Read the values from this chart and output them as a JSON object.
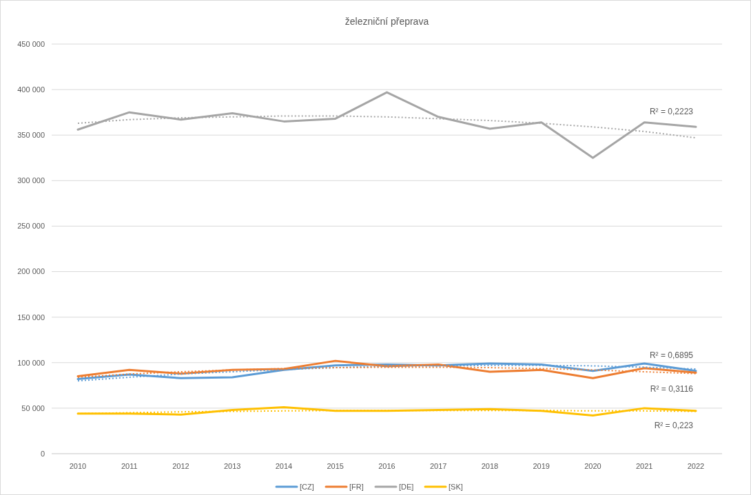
{
  "chart_data": {
    "type": "line",
    "title": "železniční přeprava",
    "categories": [
      "2010",
      "2011",
      "2012",
      "2013",
      "2014",
      "2015",
      "2016",
      "2017",
      "2018",
      "2019",
      "2020",
      "2021",
      "2022"
    ],
    "series": [
      {
        "name": "[CZ]",
        "color": "#5b9bd5",
        "values": [
          82000,
          87000,
          83000,
          84000,
          92000,
          97000,
          98000,
          97000,
          99000,
          98000,
          91000,
          99000,
          91000
        ]
      },
      {
        "name": "[FR]",
        "color": "#ed7d31",
        "values": [
          85000,
          92000,
          88000,
          92000,
          93000,
          102000,
          96000,
          98000,
          90000,
          92000,
          83000,
          94000,
          89000
        ]
      },
      {
        "name": "[DE]",
        "color": "#a5a5a5",
        "values": [
          356000,
          375000,
          367000,
          374000,
          365000,
          368000,
          397000,
          370000,
          357000,
          364000,
          325000,
          364000,
          359000
        ]
      },
      {
        "name": "[SK]",
        "color": "#ffc000",
        "values": [
          44000,
          44000,
          43000,
          48000,
          51000,
          47000,
          47000,
          48000,
          49000,
          47000,
          42000,
          50000,
          47000
        ]
      },
      {
        "color": "#5b9bd5",
        "line_style": "dotted",
        "values": [
          80000,
          84000,
          87500,
          90000,
          92500,
          94500,
          96000,
          96500,
          97000,
          97000,
          96500,
          95000,
          93000
        ]
      },
      {
        "color": "#ed7d31",
        "line_style": "dotted",
        "values": [
          84000,
          87500,
          90000,
          92000,
          93500,
          94500,
          95000,
          95000,
          94500,
          93500,
          92000,
          90000,
          88000
        ]
      },
      {
        "color": "#a5a5a5",
        "line_style": "dotted",
        "values": [
          363000,
          367000,
          369000,
          370000,
          371000,
          371000,
          370000,
          368000,
          366000,
          363000,
          359000,
          354000,
          347000
        ]
      },
      {
        "color": "#ffc000",
        "line_style": "dotted",
        "values": [
          44000,
          45000,
          46000,
          46500,
          47000,
          47500,
          47500,
          47500,
          47500,
          47500,
          47000,
          47000,
          46500
        ]
      }
    ],
    "ylim": [
      0,
      450000
    ],
    "yticks": [
      {
        "value": 0,
        "label": "0"
      },
      {
        "value": 50000,
        "label": "50 000"
      },
      {
        "value": 100000,
        "label": "100 000"
      },
      {
        "value": 150000,
        "label": "150 000"
      },
      {
        "value": 200000,
        "label": "200 000"
      },
      {
        "value": 250000,
        "label": "250 000"
      },
      {
        "value": 300000,
        "label": "300 000"
      },
      {
        "value": 350000,
        "label": "350 000"
      },
      {
        "value": 400000,
        "label": "400 000"
      },
      {
        "value": 450000,
        "label": "450 000"
      }
    ],
    "grid": "y",
    "legend": "bottom",
    "marker": "none",
    "line_style": "solid",
    "annotations": [
      "R² = 0,2223",
      "R² = 0,6895",
      "R² = 0,3116",
      "R² = 0,223"
    ]
  }
}
